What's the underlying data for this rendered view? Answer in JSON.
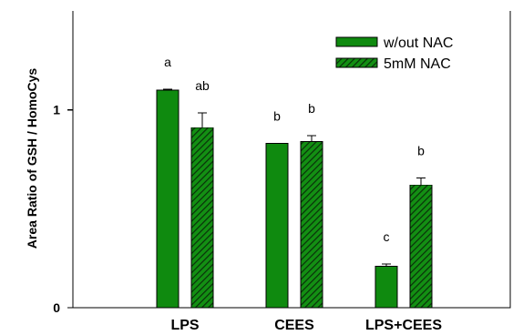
{
  "chart_data": {
    "type": "bar",
    "title": "",
    "xlabel": "",
    "ylabel": "Area Ratio of GSH / HomoCys",
    "ylim": [
      0,
      1.5
    ],
    "yticks": [
      0,
      1
    ],
    "categories": [
      "LPS",
      "CEES",
      "LPS+CEES"
    ],
    "series": [
      {
        "name": "w/out NAC",
        "pattern": "solid",
        "color": "#0f8a0f",
        "values": [
          1.1,
          0.83,
          0.21
        ],
        "errors": [
          0.004,
          0.0,
          0.01
        ],
        "labels": [
          "a",
          "b",
          "c"
        ]
      },
      {
        "name": "5mM NAC",
        "pattern": "diagonal-hatch",
        "color": "#138f13",
        "values": [
          0.91,
          0.84,
          0.62
        ],
        "errors": [
          0.075,
          0.03,
          0.035
        ],
        "labels": [
          "ab",
          "b",
          "b"
        ]
      }
    ],
    "grid": false,
    "legend_position": "top-right"
  }
}
